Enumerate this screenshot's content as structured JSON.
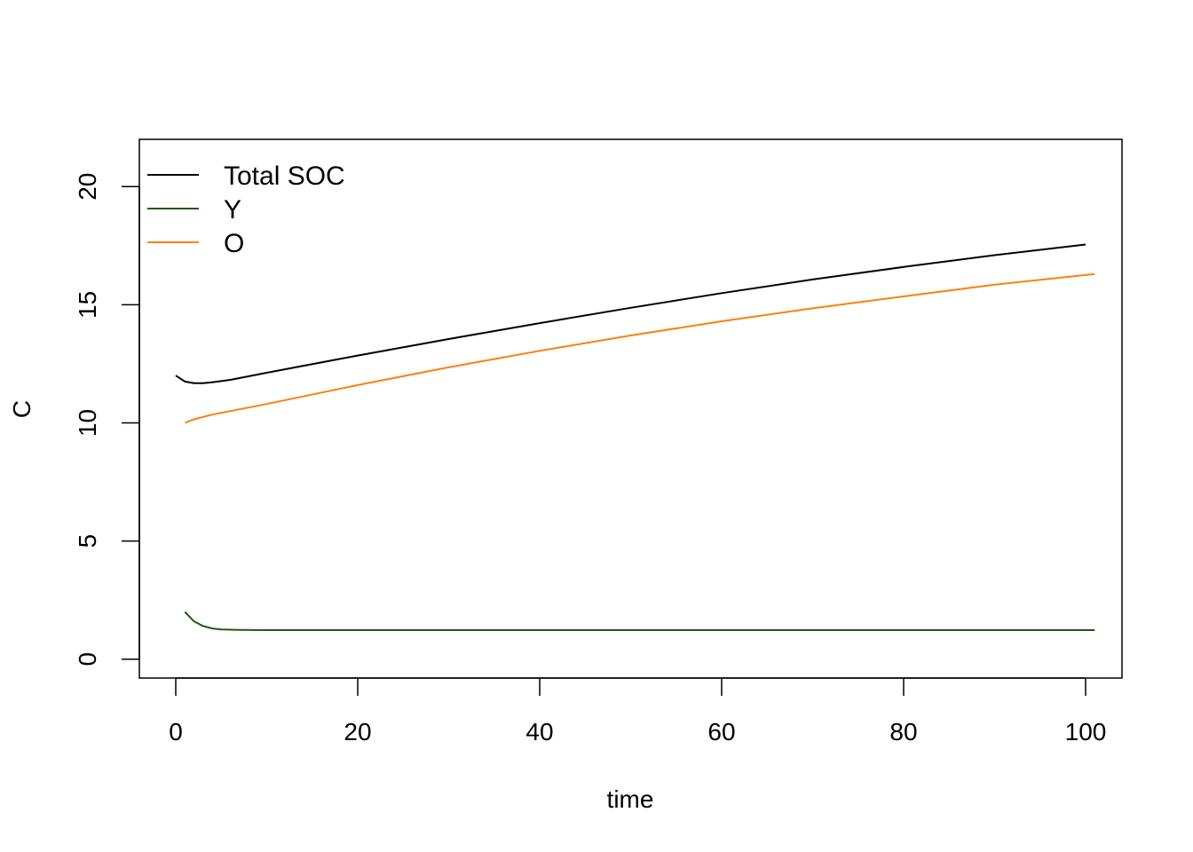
{
  "chart_data": {
    "type": "line",
    "title": "",
    "xlabel": "time",
    "ylabel": "C",
    "xlim": [
      -4,
      104
    ],
    "ylim": [
      -0.8,
      22
    ],
    "x_ticks": [
      0,
      20,
      40,
      60,
      80,
      100
    ],
    "y_ticks": [
      0,
      5,
      10,
      15,
      20
    ],
    "x_tick_labels": [
      "0",
      "20",
      "40",
      "60",
      "80",
      "100"
    ],
    "y_tick_labels": [
      "0",
      "5",
      "10",
      "15",
      "20"
    ],
    "grid": false,
    "legend": "top-left",
    "series": [
      {
        "name": "Total SOC",
        "color": "#000000",
        "points": [
          [
            0,
            12.0
          ],
          [
            1,
            11.75
          ],
          [
            2,
            11.68
          ],
          [
            3,
            11.68
          ],
          [
            4,
            11.72
          ],
          [
            6,
            11.82
          ],
          [
            10,
            12.12
          ],
          [
            20,
            12.85
          ],
          [
            30,
            13.55
          ],
          [
            40,
            14.22
          ],
          [
            50,
            14.87
          ],
          [
            60,
            15.49
          ],
          [
            70,
            16.07
          ],
          [
            80,
            16.6
          ],
          [
            90,
            17.1
          ],
          [
            100,
            17.55
          ]
        ]
      },
      {
        "name": "Y",
        "color": "#1f5a0f",
        "points": [
          [
            1,
            2.0
          ],
          [
            2,
            1.6
          ],
          [
            3,
            1.4
          ],
          [
            4,
            1.3
          ],
          [
            5,
            1.26
          ],
          [
            7,
            1.24
          ],
          [
            10,
            1.23
          ],
          [
            20,
            1.23
          ],
          [
            40,
            1.23
          ],
          [
            60,
            1.23
          ],
          [
            80,
            1.23
          ],
          [
            101,
            1.23
          ]
        ]
      },
      {
        "name": "O",
        "color": "#ff7f0e",
        "points": [
          [
            1,
            10.0
          ],
          [
            2,
            10.15
          ],
          [
            4,
            10.35
          ],
          [
            6,
            10.5
          ],
          [
            10,
            10.8
          ],
          [
            20,
            11.6
          ],
          [
            30,
            12.35
          ],
          [
            40,
            13.05
          ],
          [
            50,
            13.7
          ],
          [
            60,
            14.3
          ],
          [
            70,
            14.85
          ],
          [
            80,
            15.35
          ],
          [
            90,
            15.85
          ],
          [
            101,
            16.3
          ]
        ]
      }
    ]
  }
}
